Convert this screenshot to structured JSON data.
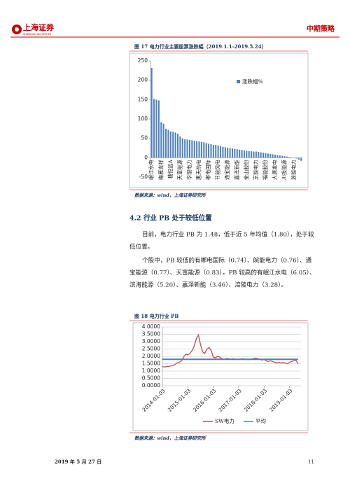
{
  "header": {
    "logo": "上海证券",
    "logo_sub": "SHANGHAI SECURITIES",
    "section": "中期策略"
  },
  "heading": "4.2 行业 PB 处于较低位置",
  "paragraphs": [
    [
      "目前，电力行业 PB 为 1.48，低于近 5 年均值（1.80），处于较",
      "低位置。"
    ],
    [
      "个股中，PB 较低的有郴电国际（0.74）、皖能电力（0.76）、通",
      "宝能源（0.77）、天富能源（0.83），PB 较高的有岷江水电（6.05）、",
      "滨海能源（5.20）、嘉泽新能（3.46）、涪陵电力（3.28）。"
    ]
  ],
  "footer": {
    "date": "2019 年 5 月 27 日",
    "page": "11"
  },
  "chart_data": [
    {
      "type": "bar",
      "title": "图 17 电力行业主要股票涨跌幅（2019.1.1-2019.5.24）",
      "source": "数据来源：wind，上海证券研究所",
      "series": [
        {
          "name": "涨跌幅%",
          "color": "#4f81bd",
          "values": [
            232,
            152,
            150,
            148,
            92,
            88,
            75,
            72,
            68,
            67,
            65,
            62,
            55,
            50,
            48,
            47,
            46,
            45,
            44,
            43,
            42,
            41,
            40,
            38,
            36,
            35,
            33,
            33,
            32,
            30,
            28,
            27,
            26,
            25,
            24,
            23,
            22,
            21,
            20,
            19,
            18,
            17,
            17,
            16,
            16,
            15,
            14,
            13,
            12,
            11,
            10,
            9,
            8,
            7,
            6,
            5,
            4,
            3,
            2,
            1,
            0,
            -2,
            -5,
            -8
          ]
        }
      ],
      "categories": [
        "岷江水电",
        null,
        null,
        null,
        "梅雁吉祥",
        null,
        null,
        null,
        "穗恒运A",
        null,
        null,
        null,
        "天富能源",
        null,
        null,
        null,
        "华银电力",
        null,
        null,
        null,
        "惠天热电",
        null,
        null,
        null,
        "郴电国际",
        null,
        null,
        null,
        "节能风电",
        null,
        null,
        null,
        "通宝能源",
        null,
        null,
        null,
        "嘉泽新能",
        null,
        null,
        null,
        "金山股份",
        null,
        null,
        null,
        "京能电力",
        null,
        null,
        null,
        "福能股份",
        null,
        null,
        null,
        "大唐发电",
        null,
        null,
        null,
        "川投能源",
        null,
        null,
        null,
        "浙能电力",
        null,
        null,
        null
      ],
      "ylim": [
        -50,
        250
      ],
      "yticks": [
        -50,
        0,
        50,
        100,
        150,
        200,
        250
      ],
      "grid": false
    },
    {
      "type": "line",
      "title": "图 18 电力行业 PB",
      "source": "数据来源：wind，上海证券研究所",
      "x": [
        2014,
        2014.083,
        2014.167,
        2014.25,
        2014.333,
        2014.417,
        2014.5,
        2014.583,
        2014.667,
        2014.75,
        2014.833,
        2014.917,
        2015,
        2015.083,
        2015.167,
        2015.25,
        2015.333,
        2015.417,
        2015.5,
        2015.583,
        2015.667,
        2015.75,
        2015.833,
        2015.917,
        2016,
        2016.083,
        2016.167,
        2016.25,
        2016.333,
        2016.417,
        2016.5,
        2016.583,
        2016.667,
        2016.75,
        2016.833,
        2016.917,
        2017,
        2017.083,
        2017.167,
        2017.25,
        2017.333,
        2017.417,
        2017.5,
        2017.583,
        2017.667,
        2017.75,
        2017.833,
        2017.917,
        2018,
        2018.083,
        2018.167,
        2018.25,
        2018.333,
        2018.417,
        2018.5,
        2018.583,
        2018.667,
        2018.75,
        2018.833,
        2018.917,
        2019,
        2019.083,
        2019.167,
        2019.25,
        2019.333
      ],
      "series": [
        {
          "name": "SW电力",
          "color": "#c0504d",
          "values": [
            1.3,
            1.28,
            1.3,
            1.32,
            1.35,
            1.38,
            1.45,
            1.55,
            1.6,
            1.7,
            1.95,
            2.15,
            2.1,
            2.2,
            2.4,
            2.7,
            3.2,
            3.45,
            2.8,
            2.3,
            2.2,
            2.5,
            2.6,
            2.4,
            1.95,
            1.9,
            2.0,
            1.95,
            1.85,
            1.8,
            1.85,
            1.85,
            1.8,
            1.85,
            1.82,
            1.8,
            1.78,
            1.82,
            1.85,
            1.8,
            1.78,
            1.78,
            1.82,
            1.85,
            1.88,
            1.85,
            1.8,
            1.75,
            1.8,
            1.7,
            1.65,
            1.7,
            1.65,
            1.6,
            1.55,
            1.6,
            1.55,
            1.58,
            1.55,
            1.5,
            1.6,
            1.65,
            1.7,
            1.75,
            1.5
          ]
        },
        {
          "name": "平均",
          "color": "#4f81bd",
          "values": [
            1.8,
            1.8,
            1.8,
            1.8,
            1.8,
            1.8,
            1.8,
            1.8,
            1.8,
            1.8,
            1.8,
            1.8,
            1.8,
            1.8,
            1.8,
            1.8,
            1.8,
            1.8,
            1.8,
            1.8,
            1.8,
            1.8,
            1.8,
            1.8,
            1.8,
            1.8,
            1.8,
            1.8,
            1.8,
            1.8,
            1.8,
            1.8,
            1.8,
            1.8,
            1.8,
            1.8,
            1.8,
            1.8,
            1.8,
            1.8,
            1.8,
            1.8,
            1.8,
            1.8,
            1.8,
            1.8,
            1.8,
            1.8,
            1.8,
            1.8,
            1.8,
            1.8,
            1.8,
            1.8,
            1.8,
            1.8,
            1.8,
            1.8,
            1.8,
            1.8,
            1.8,
            1.8,
            1.8,
            1.8,
            1.8
          ]
        }
      ],
      "xlim": [
        2014,
        2019.45
      ],
      "xticks": [
        {
          "value": 2014,
          "label": "2014-01-03"
        },
        {
          "value": 2015,
          "label": "2015-01-03"
        },
        {
          "value": 2016,
          "label": "2016-01-03"
        },
        {
          "value": 2017,
          "label": "2017-01-03"
        },
        {
          "value": 2018,
          "label": "2018-01-03"
        },
        {
          "value": 2019,
          "label": "2019-01-03"
        }
      ],
      "ylim": [
        0,
        4
      ],
      "yticks": [
        {
          "value": 0,
          "label": "0.0000"
        },
        {
          "value": 0.5,
          "label": "0.5000"
        },
        {
          "value": 1,
          "label": "1.0000"
        },
        {
          "value": 1.5,
          "label": "1.5000"
        },
        {
          "value": 2,
          "label": "2.0000"
        },
        {
          "value": 2.5,
          "label": "2.5000"
        },
        {
          "value": 3,
          "label": "3.0000"
        },
        {
          "value": 3.5,
          "label": "3.5000"
        },
        {
          "value": 4,
          "label": "4.0000"
        }
      ],
      "grid": true
    }
  ]
}
